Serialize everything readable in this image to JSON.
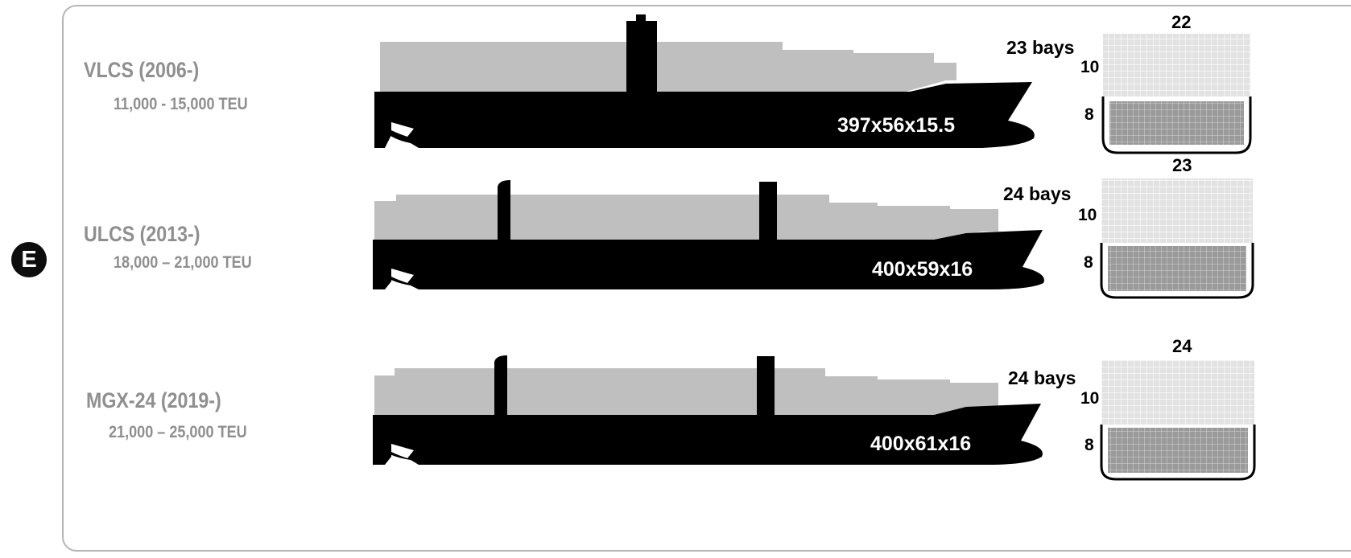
{
  "section_badge": "E",
  "ships": [
    {
      "class_name": "VLCS (2006-)",
      "teu_range": "11,000 - 15,000 TEU",
      "dimensions": "397x56x15.5",
      "bays": "23 bays",
      "tiers_on_deck": "10",
      "tiers_in_hold": "8",
      "rows_wide": "22"
    },
    {
      "class_name": "ULCS (2013-)",
      "teu_range": "18,000 – 21,000 TEU",
      "dimensions": "400x59x16",
      "bays": "24 bays",
      "tiers_on_deck": "10",
      "tiers_in_hold": "8",
      "rows_wide": "23"
    },
    {
      "class_name": "MGX-24 (2019-)",
      "teu_range": "21,000 – 25,000 TEU",
      "dimensions": "400x61x16",
      "bays": "24 bays",
      "tiers_on_deck": "10",
      "tiers_in_hold": "8",
      "rows_wide": "24"
    }
  ],
  "colors": {
    "hull": "#000000",
    "deck_cargo": "#bfbfbf",
    "label_gray": "#8f8f8f",
    "deck_container_fill": "#e2e2e2",
    "hold_container_fill": "#9a9a9a",
    "frame_border": "#b5b5b5"
  }
}
